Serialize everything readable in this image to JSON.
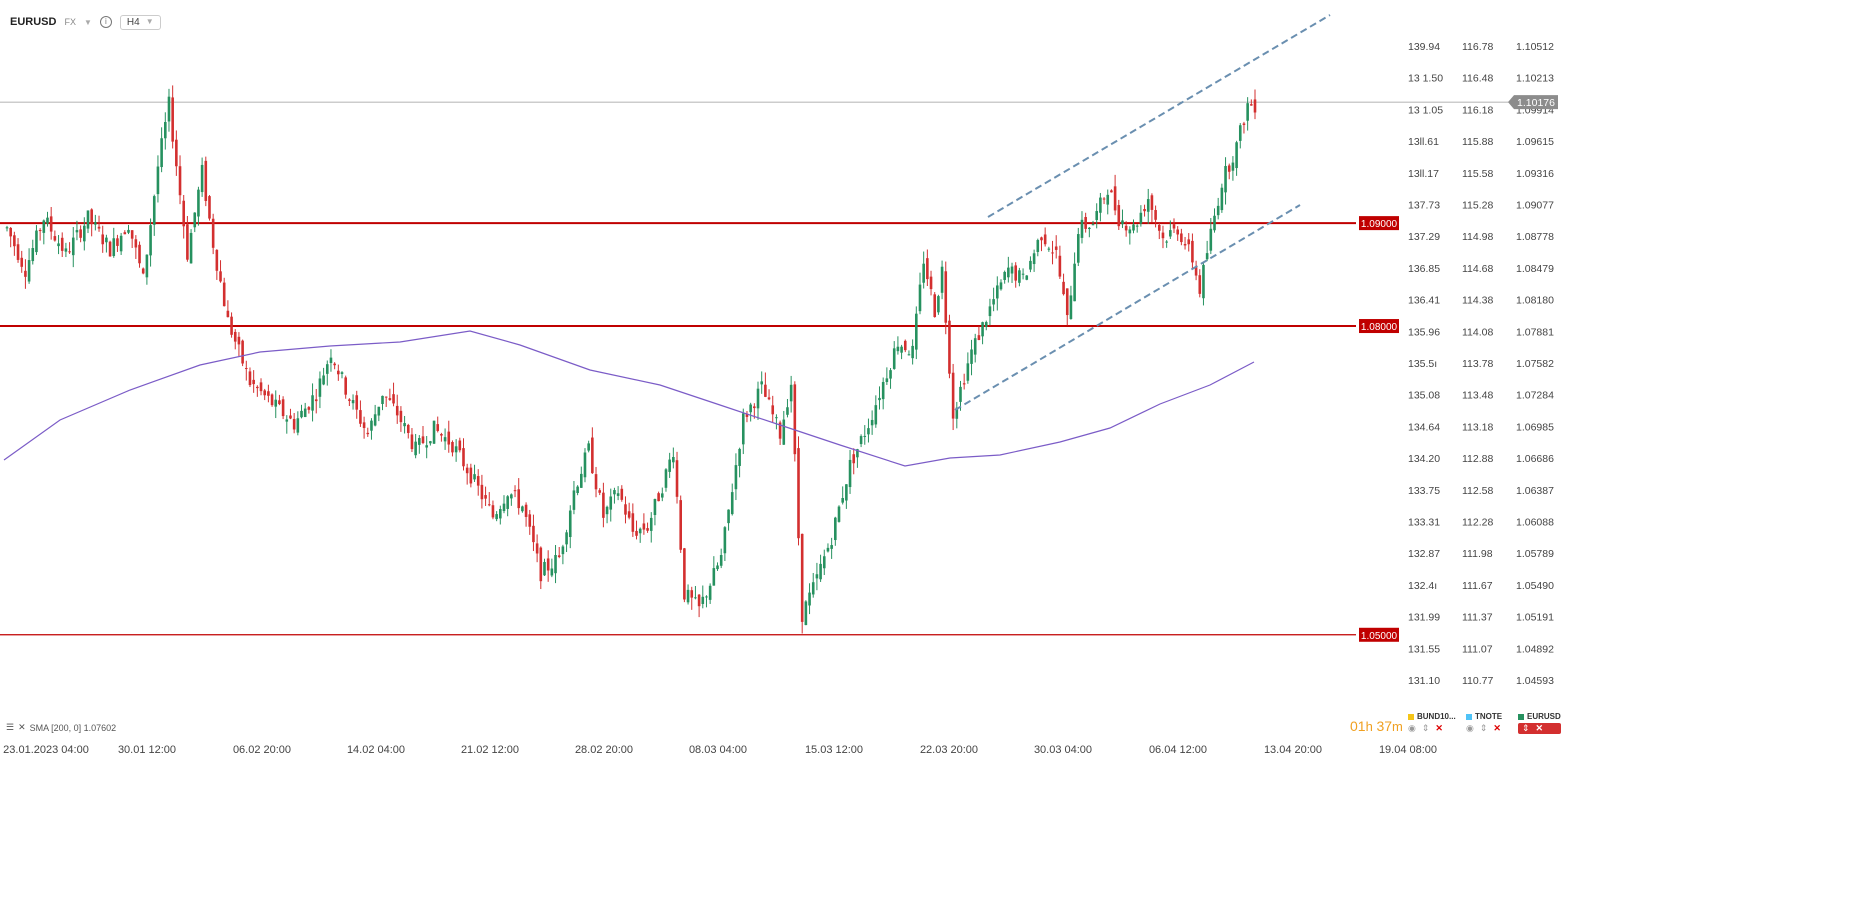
{
  "header": {
    "symbol": "EURUSD",
    "market": "FX",
    "timeframe": "H4",
    "icons": [
      "chevron-down-icon",
      "info-icon"
    ]
  },
  "chart_data": {
    "type": "candlestick",
    "symbol": "EURUSD",
    "timeframe": "H4",
    "price_range": [
      1.04444,
      1.10721
    ],
    "x_ticks": [
      "23.01.2023  04:00",
      "30.01  12:00",
      "06.02  20:00",
      "14.02  04:00",
      "21.02  12:00",
      "28.02  20:00",
      "08.03  04:00",
      "15.03  12:00",
      "22.03  20:00",
      "30.03  04:00",
      "06.04  12:00",
      "13.04  20:00",
      "19.04  08:00"
    ],
    "y_axis_1": [
      "139.94",
      "13 1.50",
      "13 1.05",
      "13ll.61",
      "13ll.17",
      "137.73",
      "137.29",
      "136.85",
      "136.41",
      "135.96",
      "135.5ı",
      "135.08",
      "134.64",
      "134.20",
      "133.75",
      "133.31",
      "132.87",
      "132.4ı",
      "131.99",
      "131.55",
      "131.10"
    ],
    "y_axis_2": [
      "116.78",
      "116.48",
      "116.18",
      "115.88",
      "115.58",
      "115.28",
      "114.98",
      "114.68",
      "114.38",
      "114.08",
      "113.78",
      "113.48",
      "113.18",
      "112.88",
      "112.58",
      "112.28",
      "111.98",
      "111.67",
      "111.37",
      "111.07",
      "110.77"
    ],
    "y_axis_3": [
      "1.10512",
      "1.10213",
      "1.09914",
      "1.09615",
      "1.09316",
      "1.09077",
      "1.08778",
      "1.08479",
      "1.08180",
      "1.07881",
      "1.07582",
      "1.07284",
      "1.06985",
      "1.06686",
      "1.06387",
      "1.06088",
      "1.05789",
      "1.05490",
      "1.05191",
      "1.04892",
      "1.04593"
    ],
    "current_price": "1.10176",
    "current_price_color": "#8c8c8c",
    "levels": [
      {
        "label": "1.09000",
        "value": 1.09,
        "color": "#c00000"
      },
      {
        "label": "1.08000",
        "value": 1.08,
        "color": "#c00000"
      },
      {
        "label": "1.05000",
        "value": 1.05,
        "color": "#c00000"
      }
    ],
    "channel": {
      "color": "#6a8fb0",
      "upper": [
        [
          "22.03 20:00",
          1.0907
        ],
        [
          "13.04 20:00",
          1.10721
        ]
      ],
      "lower": [
        [
          "22.03 20:00",
          1.071
        ],
        [
          "13.04 20:00",
          1.0907
        ]
      ]
    },
    "sma": {
      "label": "SMA [200, 0] 1.07602",
      "period": 200,
      "value": 1.07602,
      "color": "#7b5cc7"
    },
    "up_color": "#26915f",
    "down_color": "#d32f2f",
    "close_path": [
      [
        0,
        1.0895
      ],
      [
        5,
        1.0855
      ],
      [
        10,
        1.0905
      ],
      [
        16,
        1.087
      ],
      [
        22,
        1.0905
      ],
      [
        28,
        1.0875
      ],
      [
        33,
        1.09
      ],
      [
        37,
        1.0845
      ],
      [
        41,
        1.0955
      ],
      [
        44,
        1.1015
      ],
      [
        49,
        1.087
      ],
      [
        53,
        1.095
      ],
      [
        56,
        1.088
      ],
      [
        60,
        1.0805
      ],
      [
        66,
        1.0745
      ],
      [
        72,
        1.0725
      ],
      [
        78,
        1.0705
      ],
      [
        84,
        1.0735
      ],
      [
        88,
        1.0775
      ],
      [
        93,
        1.073
      ],
      [
        98,
        1.0695
      ],
      [
        102,
        1.0735
      ],
      [
        106,
        1.0715
      ],
      [
        111,
        1.068
      ],
      [
        116,
        1.07
      ],
      [
        121,
        1.0685
      ],
      [
        126,
        1.0655
      ],
      [
        132,
        1.0615
      ],
      [
        136,
        1.064
      ],
      [
        140,
        1.0625
      ],
      [
        145,
        1.056
      ],
      [
        150,
        1.0575
      ],
      [
        154,
        1.064
      ],
      [
        158,
        1.068
      ],
      [
        162,
        1.0615
      ],
      [
        166,
        1.064
      ],
      [
        170,
        1.06
      ],
      [
        174,
        1.0605
      ],
      [
        178,
        1.0645
      ],
      [
        181,
        1.068
      ],
      [
        184,
        1.054
      ],
      [
        188,
        1.0525
      ],
      [
        194,
        1.0575
      ],
      [
        200,
        1.071
      ],
      [
        205,
        1.074
      ],
      [
        210,
        1.0695
      ],
      [
        213,
        1.0745
      ],
      [
        216,
        1.052
      ],
      [
        219,
        1.0545
      ],
      [
        224,
        1.0595
      ],
      [
        229,
        1.0665
      ],
      [
        234,
        1.0705
      ],
      [
        238,
        1.0745
      ],
      [
        242,
        1.0785
      ],
      [
        246,
        1.0775
      ],
      [
        249,
        1.0865
      ],
      [
        252,
        1.0815
      ],
      [
        254,
        1.0855
      ],
      [
        257,
        1.0715
      ],
      [
        262,
        1.0775
      ],
      [
        268,
        1.0825
      ],
      [
        272,
        1.0855
      ],
      [
        276,
        1.0845
      ],
      [
        281,
        1.089
      ],
      [
        285,
        1.087
      ],
      [
        288,
        1.0805
      ],
      [
        291,
        1.0895
      ],
      [
        295,
        1.09
      ],
      [
        299,
        1.0935
      ],
      [
        302,
        1.0905
      ],
      [
        306,
        1.0895
      ],
      [
        310,
        1.0925
      ],
      [
        314,
        1.0885
      ],
      [
        318,
        1.0895
      ],
      [
        322,
        1.0865
      ],
      [
        324,
        1.0835
      ],
      [
        327,
        1.089
      ],
      [
        330,
        1.094
      ],
      [
        334,
        1.0975
      ],
      [
        337,
        1.1015
      ]
    ]
  },
  "sma_legend": {
    "icons": [
      "list-icon",
      "close-icon"
    ],
    "text": "SMA [200, 0] 1.07602"
  },
  "countdown": {
    "hours": "01",
    "h": "h",
    "minutes": "37",
    "m": "m"
  },
  "compare": [
    {
      "name": "BUND10...",
      "color": "#f5c518"
    },
    {
      "name": "TNOTE",
      "color": "#4fc3f7"
    },
    {
      "name": "EURUSD",
      "color": "#26915f"
    }
  ]
}
